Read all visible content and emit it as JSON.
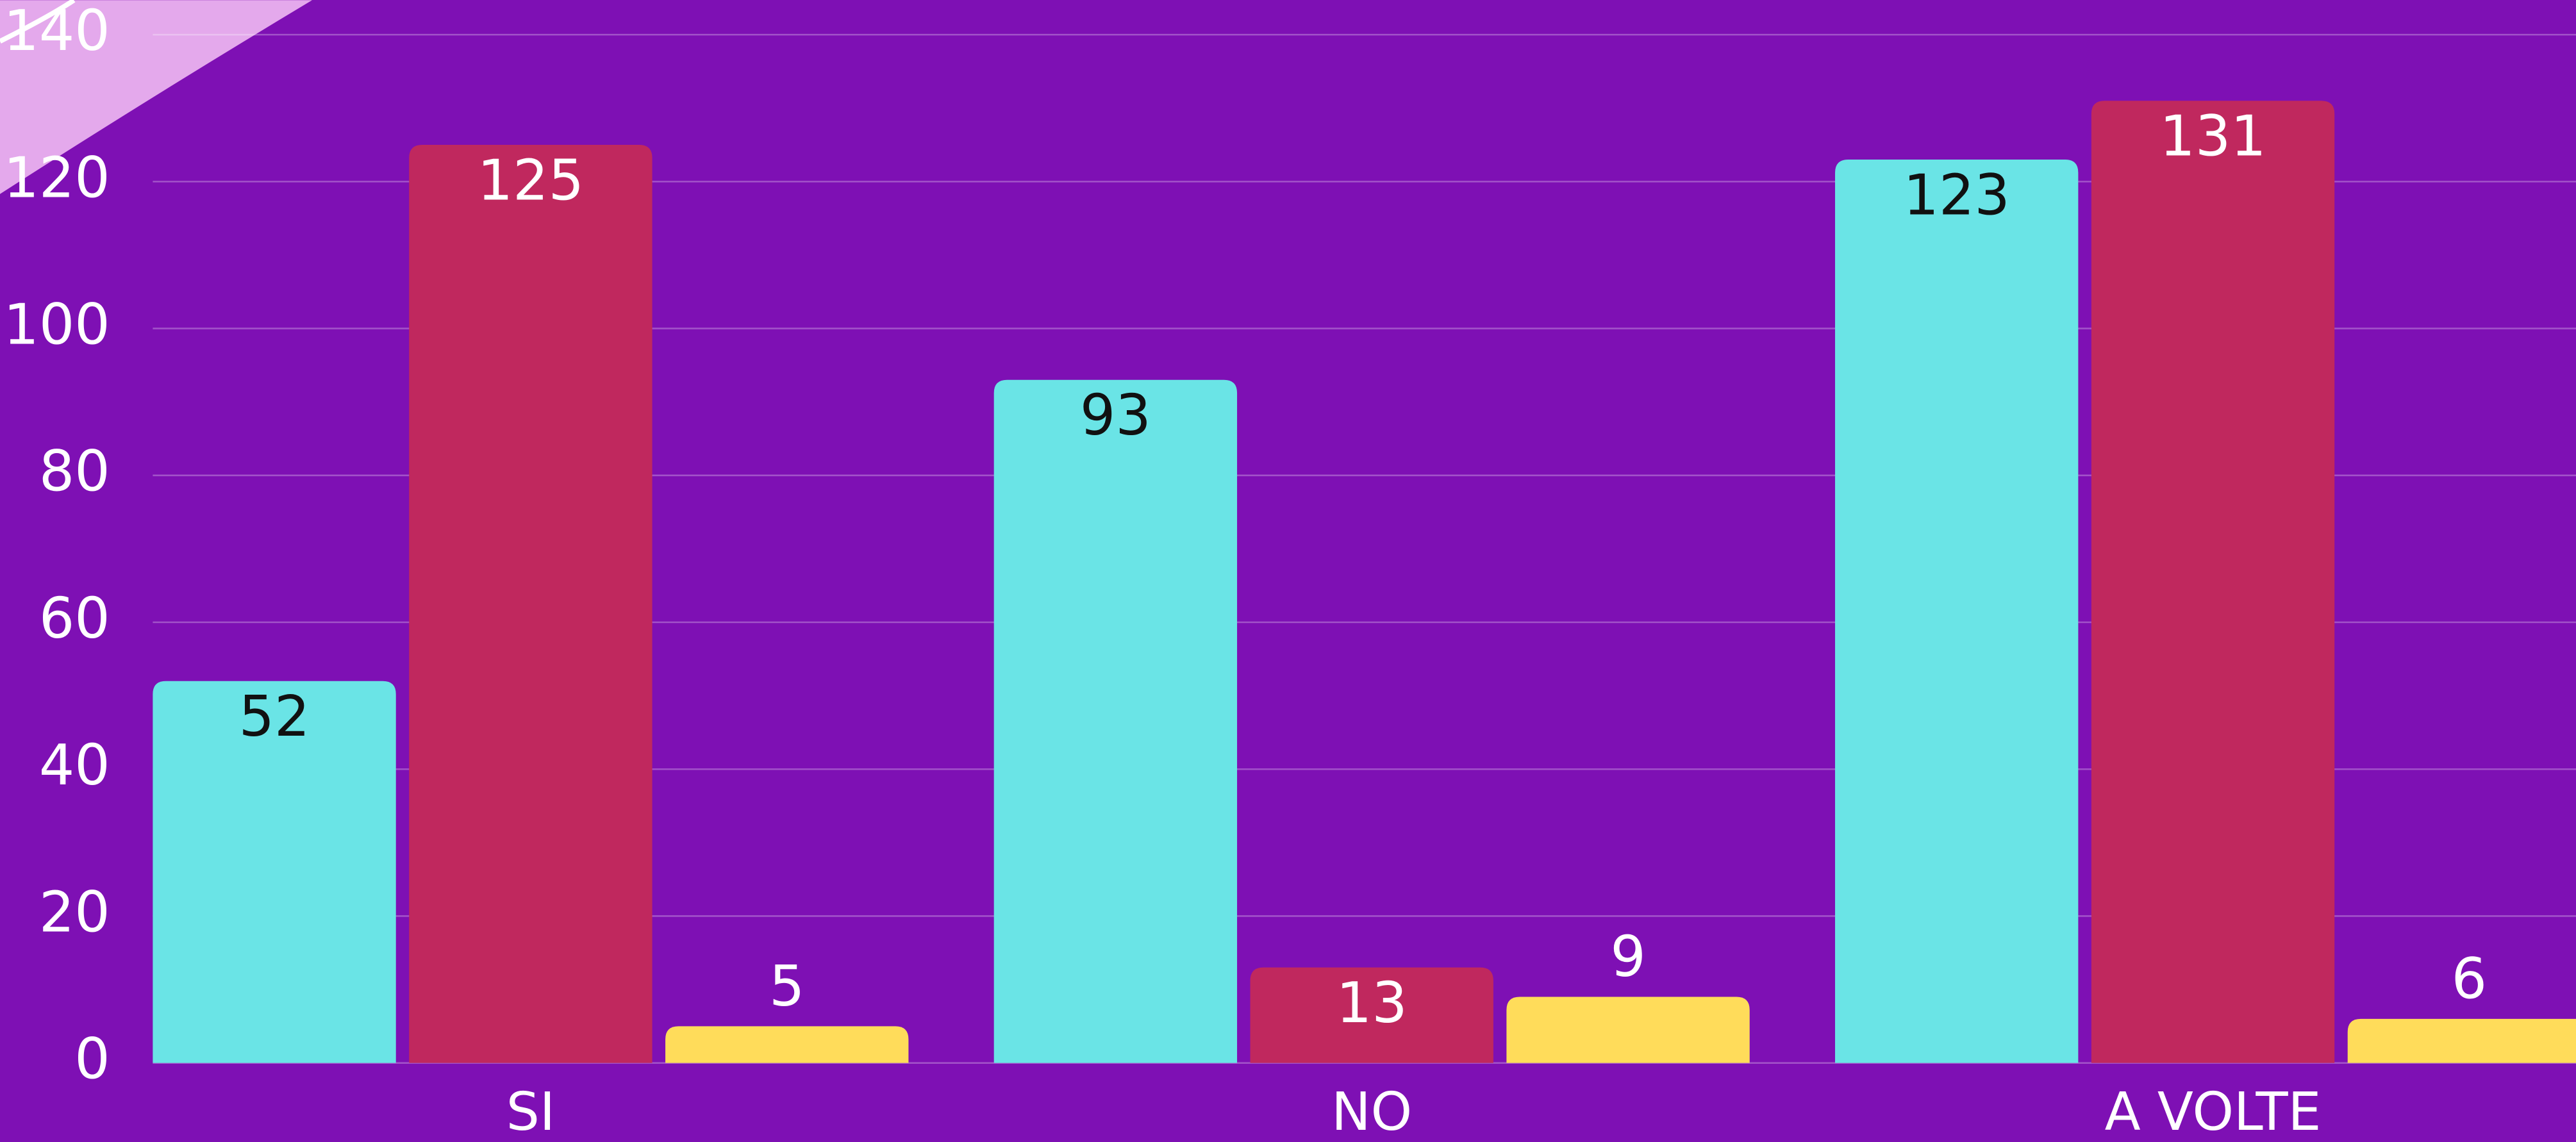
{
  "chart_data": {
    "type": "bar",
    "categories": [
      "SI",
      "NO",
      "A VOLTE"
    ],
    "series": [
      {
        "color": "#6ae4e6",
        "values": [
          52,
          93,
          123
        ]
      },
      {
        "color": "#c0285e",
        "values": [
          125,
          13,
          131
        ]
      },
      {
        "color": "#ffdc5a",
        "values": [
          5,
          9,
          6
        ]
      }
    ],
    "ylim": [
      0,
      140
    ],
    "yticks": [
      0,
      20,
      40,
      60,
      80,
      100,
      120,
      140
    ],
    "grid": true
  }
}
